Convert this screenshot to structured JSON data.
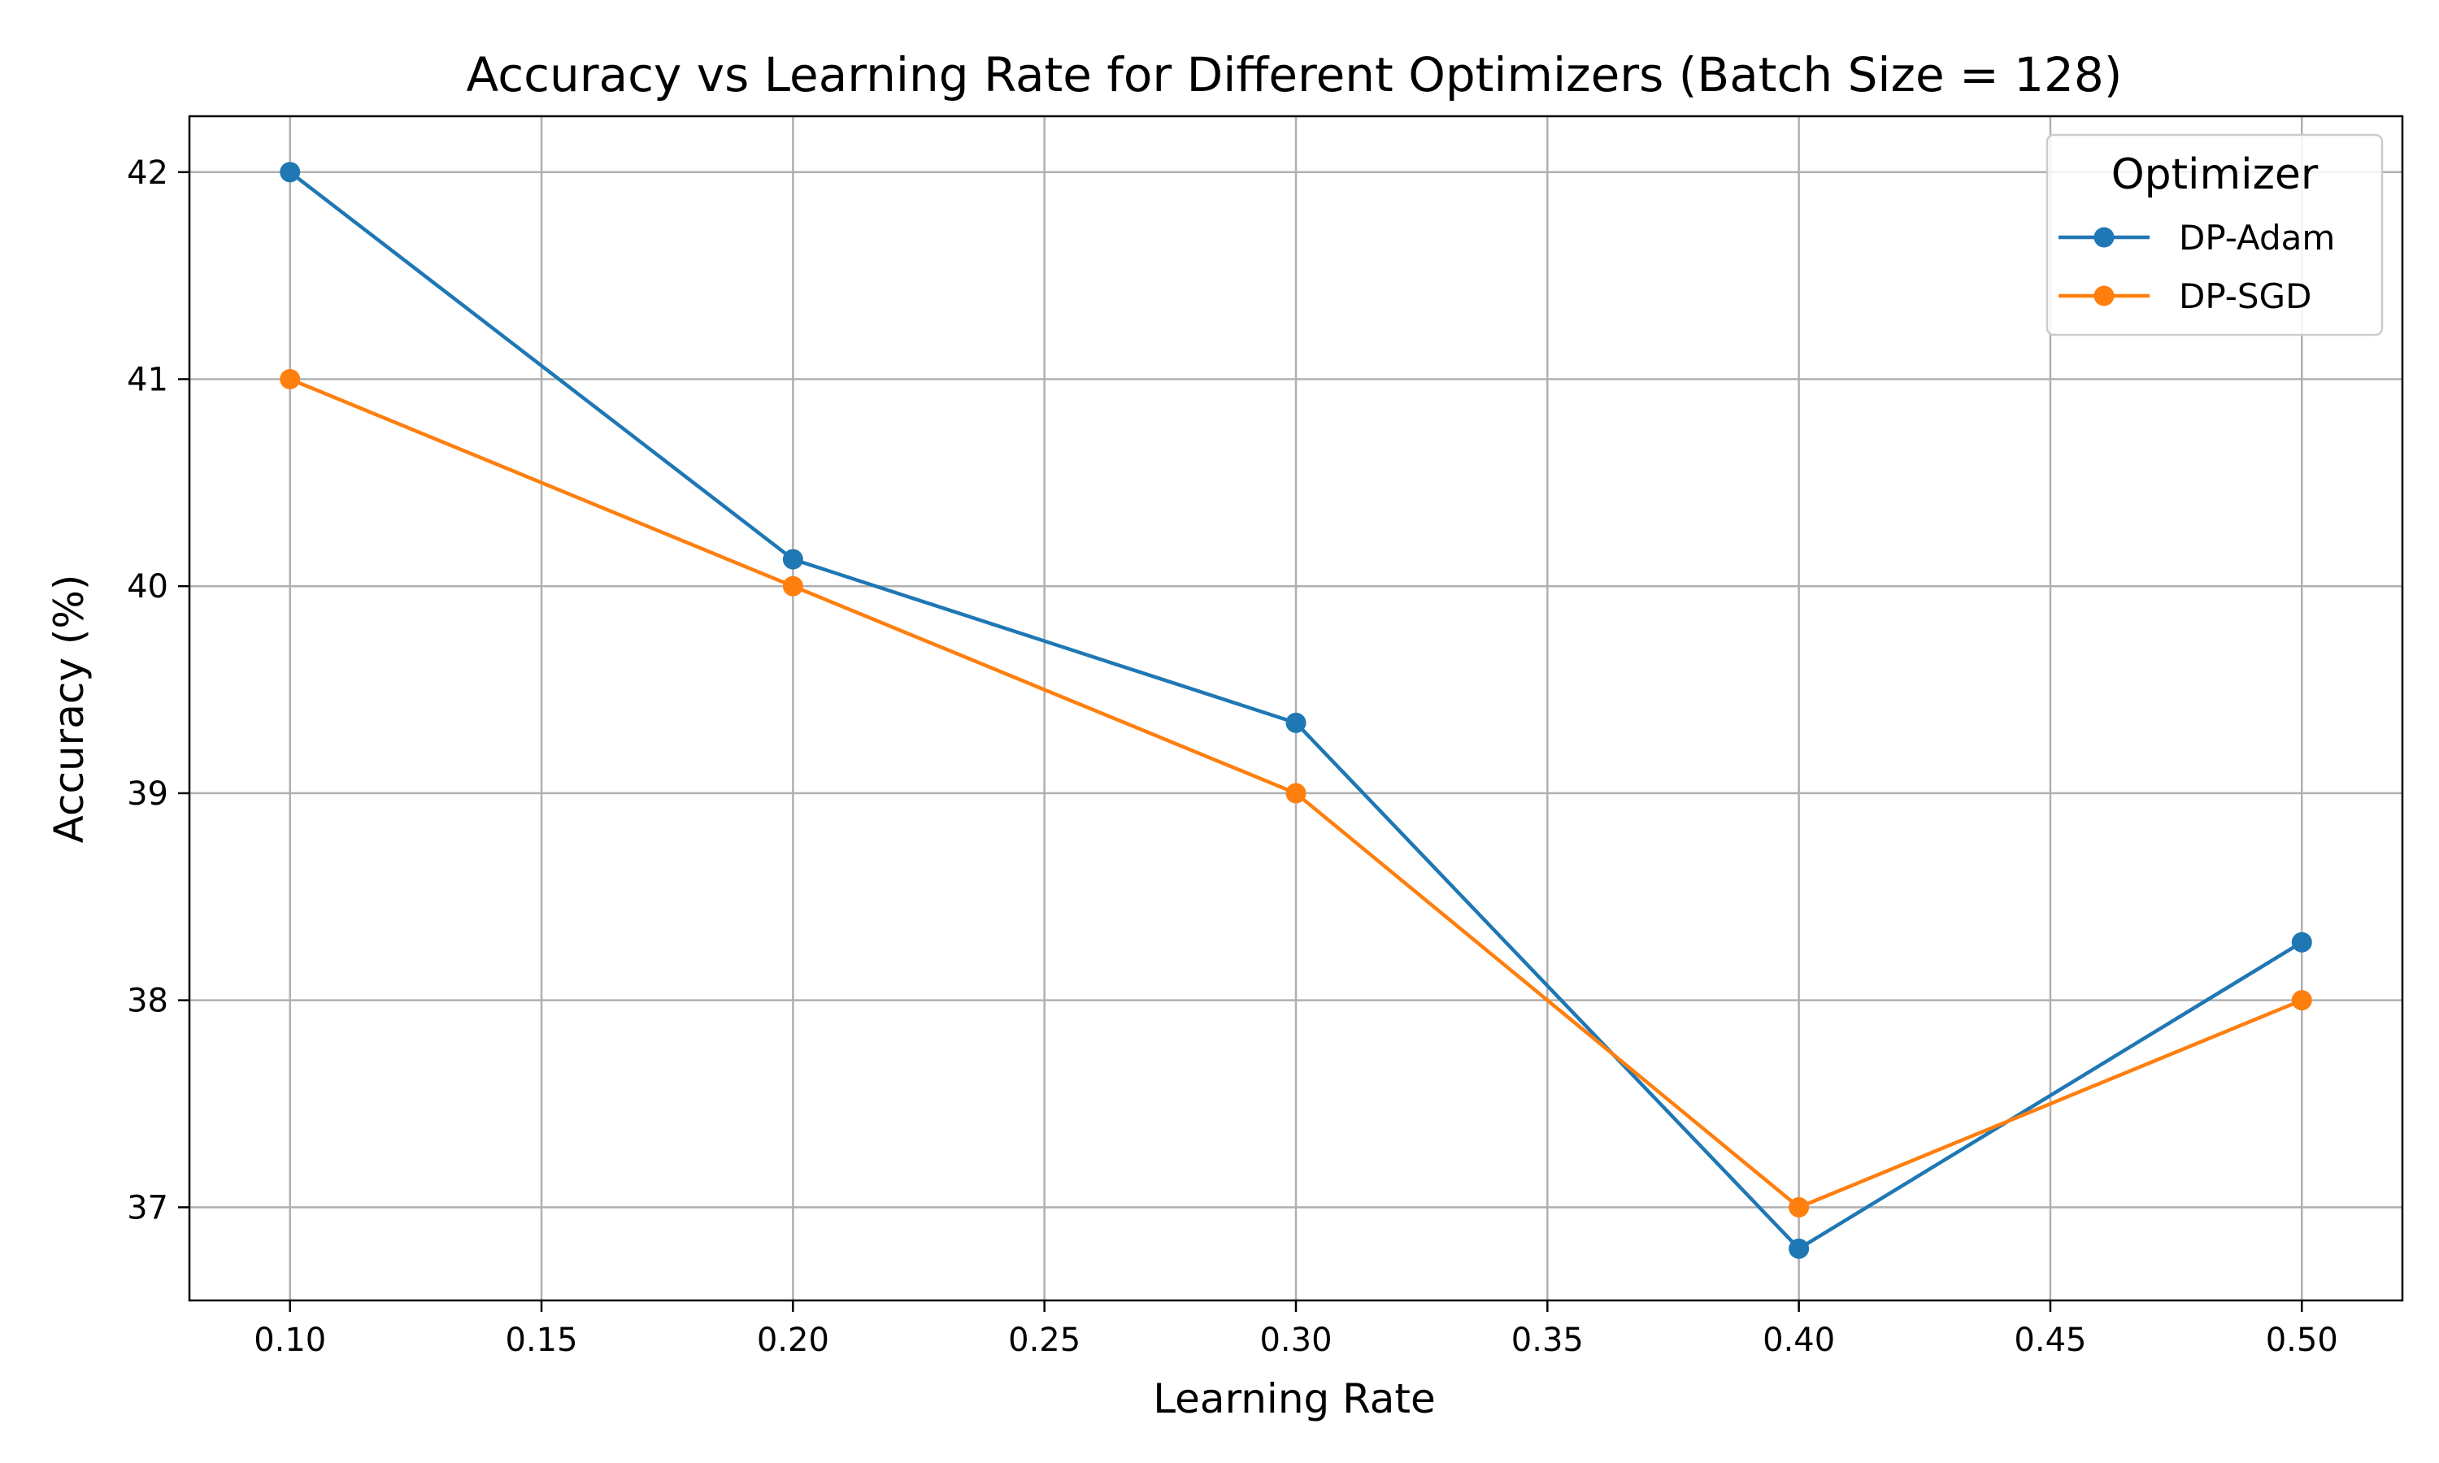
{
  "chart_data": {
    "type": "line",
    "title": "Accuracy vs Learning Rate for Different Optimizers (Batch Size = 128)",
    "xlabel": "Learning Rate",
    "ylabel": "Accuracy (%)",
    "xlim": [
      0.08,
      0.52
    ],
    "ylim": [
      36.55,
      42.27
    ],
    "xticks": [
      "0.10",
      "0.15",
      "0.20",
      "0.25",
      "0.30",
      "0.35",
      "0.40",
      "0.45",
      "0.50"
    ],
    "yticks": [
      "37",
      "38",
      "39",
      "40",
      "41",
      "42"
    ],
    "grid": true,
    "legend": {
      "title": "Optimizer",
      "placement": "top-right"
    },
    "x": [
      0.1,
      0.2,
      0.3,
      0.4,
      0.5
    ],
    "series": [
      {
        "name": "DP-Adam",
        "color": "#1f77b4",
        "values": [
          42.0,
          40.13,
          39.34,
          36.8,
          38.28
        ]
      },
      {
        "name": "DP-SGD",
        "color": "#ff7f0e",
        "values": [
          41.0,
          40.0,
          39.0,
          37.0,
          38.0
        ]
      }
    ]
  }
}
